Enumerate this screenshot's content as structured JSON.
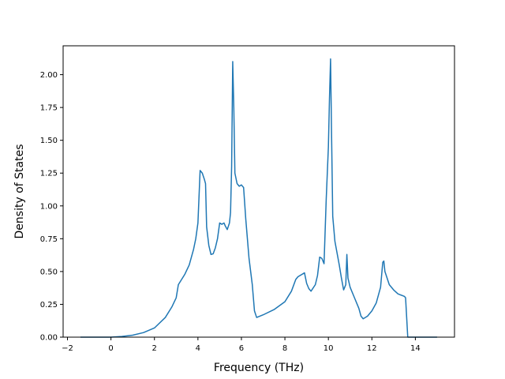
{
  "chart_data": {
    "type": "line",
    "title": "",
    "xlabel": "Frequency (THz)",
    "ylabel": "Density of States",
    "xlim": [
      -2.2,
      15.8
    ],
    "ylim": [
      0,
      2.22
    ],
    "xticks": [
      -2,
      0,
      2,
      4,
      6,
      8,
      10,
      12,
      14
    ],
    "xtick_labels": [
      "−2",
      "0",
      "2",
      "4",
      "6",
      "8",
      "10",
      "12",
      "14"
    ],
    "yticks": [
      0,
      0.25,
      0.5,
      0.75,
      1.0,
      1.25,
      1.5,
      1.75,
      2.0
    ],
    "ytick_labels": [
      "0.00",
      "0.25",
      "0.50",
      "0.75",
      "1.00",
      "1.25",
      "1.50",
      "1.75",
      "2.00"
    ],
    "grid": false,
    "legend": "none",
    "line_color": "#1f77b4",
    "series": [
      {
        "x": [
          -1.4,
          -0.5,
          0.0,
          0.5,
          1.0,
          1.5,
          2.0,
          2.5,
          2.8,
          3.0,
          3.1,
          3.4,
          3.6,
          3.8,
          3.9,
          4.0,
          4.1,
          4.2,
          4.3,
          4.35,
          4.4,
          4.5,
          4.6,
          4.7,
          4.8,
          4.9,
          5.0,
          5.1,
          5.2,
          5.25,
          5.35,
          5.45,
          5.5,
          5.55,
          5.6,
          5.65,
          5.7,
          5.8,
          5.9,
          6.0,
          6.1,
          6.2,
          6.35,
          6.5,
          6.55,
          6.6,
          6.7,
          7.0,
          7.5,
          8.0,
          8.3,
          8.5,
          8.6,
          8.9,
          9.0,
          9.1,
          9.2,
          9.4,
          9.5,
          9.6,
          9.7,
          9.8,
          9.9,
          10.0,
          10.05,
          10.1,
          10.15,
          10.2,
          10.3,
          10.4,
          10.5,
          10.6,
          10.7,
          10.8,
          10.85,
          10.9,
          11.0,
          11.2,
          11.4,
          11.5,
          11.6,
          11.8,
          12.0,
          12.2,
          12.4,
          12.5,
          12.55,
          12.6,
          12.8,
          13.0,
          13.2,
          13.5,
          13.55,
          13.6,
          13.65,
          14.0,
          14.5,
          15.0
        ],
        "y": [
          0.0,
          0.0,
          0.0,
          0.005,
          0.015,
          0.035,
          0.07,
          0.15,
          0.23,
          0.3,
          0.4,
          0.48,
          0.55,
          0.67,
          0.75,
          0.87,
          1.27,
          1.25,
          1.2,
          1.17,
          0.84,
          0.7,
          0.63,
          0.635,
          0.68,
          0.75,
          0.87,
          0.86,
          0.87,
          0.85,
          0.82,
          0.87,
          0.95,
          1.3,
          2.1,
          1.75,
          1.25,
          1.17,
          1.15,
          1.16,
          1.14,
          0.9,
          0.6,
          0.4,
          0.3,
          0.2,
          0.15,
          0.17,
          0.21,
          0.27,
          0.35,
          0.44,
          0.46,
          0.49,
          0.41,
          0.37,
          0.35,
          0.4,
          0.47,
          0.61,
          0.6,
          0.56,
          1.05,
          1.45,
          1.82,
          2.12,
          1.5,
          0.92,
          0.73,
          0.64,
          0.55,
          0.45,
          0.36,
          0.4,
          0.63,
          0.45,
          0.38,
          0.3,
          0.22,
          0.16,
          0.14,
          0.16,
          0.2,
          0.26,
          0.38,
          0.57,
          0.58,
          0.5,
          0.4,
          0.36,
          0.33,
          0.31,
          0.3,
          0.15,
          0.0,
          0.0,
          0.0,
          0.0
        ]
      }
    ]
  }
}
